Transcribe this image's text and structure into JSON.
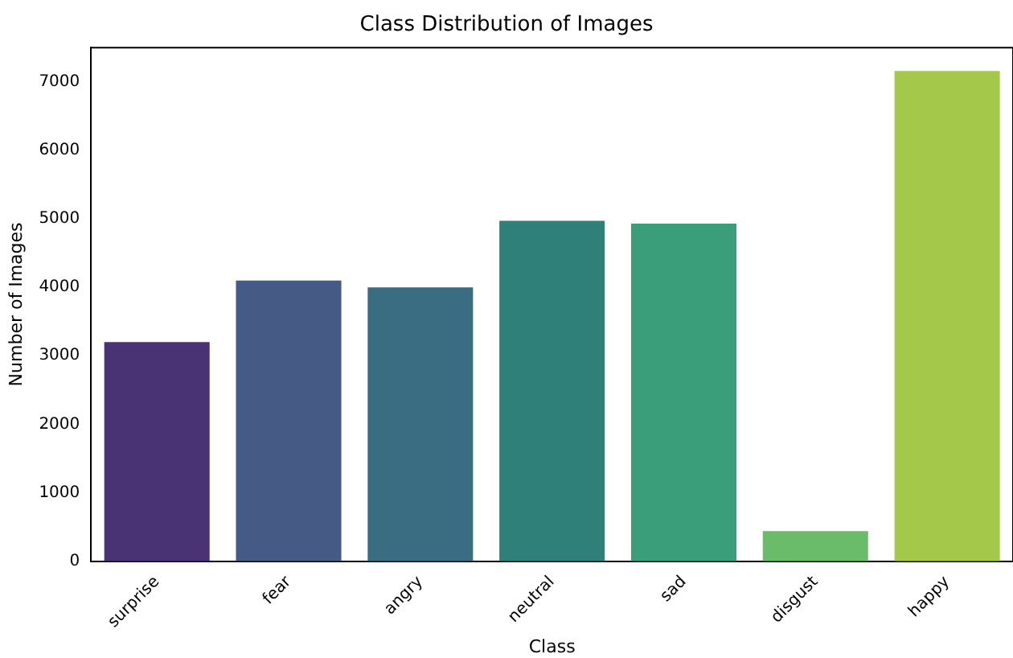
{
  "chart_data": {
    "type": "bar",
    "title": "Class Distribution of Images",
    "xlabel": "Class",
    "ylabel": "Number of Images",
    "categories": [
      "surprise",
      "fear",
      "angry",
      "neutral",
      "sad",
      "disgust",
      "happy"
    ],
    "values": [
      3200,
      4100,
      4000,
      4970,
      4930,
      440,
      7160
    ],
    "colors": [
      "#4a3375",
      "#455a85",
      "#3a6c82",
      "#2e8079",
      "#3a9e7a",
      "#6abc6a",
      "#a4c84a"
    ],
    "ylim": [
      0,
      7500
    ],
    "yticks": [
      0,
      1000,
      2000,
      3000,
      4000,
      5000,
      6000,
      7000
    ],
    "grid": false,
    "legend": false
  }
}
